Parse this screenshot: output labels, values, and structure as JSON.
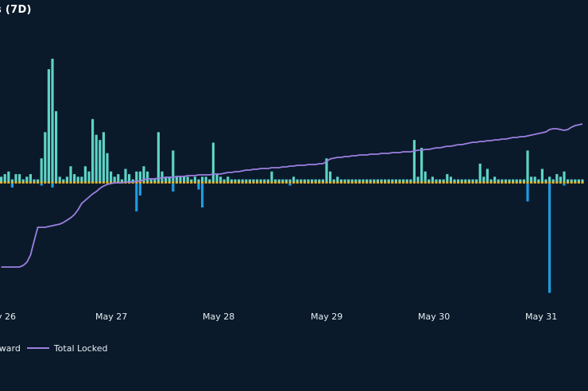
{
  "chart_data": {
    "type": "bar",
    "title": "s (7D)",
    "x_ticks": [
      "y 26",
      "May 27",
      "May 28",
      "May 29",
      "May 30",
      "May 31"
    ],
    "colors": {
      "background": "#0a1a2a",
      "stake": "#5ed3c6",
      "unstake": "#1f9be0",
      "reward": "#e8b82a",
      "total_locked": "#9d7fe0"
    },
    "series": [
      {
        "name": "Stake",
        "type": "bar",
        "values": [
          2,
          3,
          4,
          1,
          3,
          3,
          1,
          2,
          3,
          1,
          1,
          9,
          19,
          43,
          47,
          27,
          2,
          1,
          2,
          6,
          3,
          2,
          2,
          6,
          4,
          24,
          18,
          16,
          19,
          11,
          4,
          2,
          3,
          1,
          5,
          3,
          1,
          4,
          4,
          6,
          4,
          1,
          1,
          19,
          4,
          2,
          2,
          12,
          2,
          2,
          2,
          2,
          1,
          2,
          1,
          2,
          2,
          1,
          15,
          3,
          2,
          1,
          2,
          1,
          1,
          1,
          1,
          1,
          1,
          1,
          1,
          1,
          1,
          1,
          4,
          1,
          1,
          1,
          1,
          1,
          2,
          1,
          1,
          1,
          1,
          1,
          1,
          1,
          1,
          9,
          4,
          1,
          2,
          1,
          1,
          1,
          1,
          1,
          1,
          1,
          1,
          1,
          1,
          1,
          1,
          1,
          1,
          1,
          1,
          1,
          1,
          1,
          1,
          16,
          2,
          13,
          4,
          1,
          2,
          1,
          1,
          1,
          3,
          2,
          1,
          1,
          1,
          1,
          1,
          1,
          1,
          7,
          2,
          5,
          1,
          2,
          1,
          1,
          1,
          1,
          1,
          1,
          1,
          1,
          12,
          2,
          2,
          1,
          5,
          1,
          2,
          1,
          3,
          2,
          4,
          1,
          1,
          1,
          1,
          1
        ]
      },
      {
        "name": "Unstake",
        "type": "bar",
        "values": [
          0,
          0,
          0,
          -2,
          0,
          0,
          0,
          0,
          0,
          0,
          0,
          -1,
          0,
          0,
          -2,
          0,
          0,
          0,
          0,
          0,
          0,
          0,
          0,
          0,
          0,
          0,
          0,
          0,
          0,
          0,
          0,
          0,
          0,
          0,
          0,
          0,
          0,
          -14,
          -6,
          0,
          0,
          0,
          0,
          0,
          0,
          0,
          0,
          -4,
          0,
          0,
          0,
          0,
          0,
          0,
          -3,
          -12,
          0,
          0,
          0,
          0,
          0,
          0,
          0,
          0,
          0,
          0,
          0,
          0,
          0,
          0,
          0,
          0,
          0,
          0,
          0,
          0,
          0,
          0,
          0,
          -1,
          0,
          0,
          0,
          0,
          0,
          0,
          0,
          0,
          0,
          0,
          0,
          0,
          0,
          0,
          0,
          0,
          0,
          0,
          0,
          0,
          0,
          0,
          0,
          0,
          0,
          0,
          0,
          0,
          0,
          0,
          0,
          0,
          0,
          0,
          0,
          0,
          0,
          0,
          0,
          0,
          0,
          0,
          0,
          0,
          0,
          0,
          0,
          0,
          0,
          0,
          0,
          0,
          0,
          0,
          0,
          0,
          0,
          0,
          0,
          0,
          0,
          0,
          0,
          0,
          -9,
          0,
          0,
          0,
          0,
          0,
          -55,
          0,
          0,
          0,
          -1,
          0,
          0,
          0,
          0,
          0
        ]
      },
      {
        "name": "Reward",
        "type": "bar",
        "values": [
          1,
          1,
          1,
          1,
          1,
          1,
          1,
          1,
          1,
          1,
          1,
          1,
          1,
          1,
          1,
          1,
          1,
          1,
          1,
          1,
          1,
          1,
          1,
          1,
          1,
          1,
          1,
          1,
          1,
          1,
          1,
          1,
          1,
          1,
          1,
          1,
          1,
          1,
          1,
          1,
          1,
          1,
          1,
          1,
          1,
          1,
          1,
          1,
          1,
          1,
          1,
          1,
          1,
          1,
          1,
          1,
          1,
          1,
          1,
          1,
          1,
          1,
          1,
          1,
          1,
          1,
          1,
          1,
          1,
          1,
          1,
          1,
          1,
          1,
          1,
          1,
          1,
          1,
          1,
          1,
          1,
          1,
          1,
          1,
          1,
          1,
          1,
          1,
          1,
          1,
          1,
          1,
          1,
          1,
          1,
          1,
          1,
          1,
          1,
          1,
          1,
          1,
          1,
          1,
          1,
          1,
          1,
          1,
          1,
          1,
          1,
          1,
          1,
          1,
          1,
          1,
          1,
          1,
          1,
          1,
          1,
          1,
          1,
          1,
          1,
          1,
          1,
          1,
          1,
          1,
          1,
          1,
          1,
          1,
          1,
          1,
          1,
          1,
          1,
          1,
          1,
          1,
          1,
          1,
          1,
          1,
          1,
          1,
          1,
          1,
          1,
          1,
          1,
          1,
          1,
          1,
          1,
          1,
          1,
          1
        ]
      },
      {
        "name": "Total Locked",
        "type": "line",
        "values": [
          198,
          198,
          198,
          198,
          198,
          198,
          196,
          192,
          183,
          165,
          148,
          148,
          148,
          147,
          146,
          145,
          144,
          142,
          139,
          136,
          132,
          126,
          118,
          114,
          110,
          106,
          103,
          99,
          96,
          94,
          93,
          92,
          92,
          92,
          91,
          91,
          91,
          90,
          90,
          88,
          87,
          87,
          87,
          86,
          86,
          85,
          85,
          85,
          84,
          84,
          84,
          83,
          83,
          83,
          82,
          82,
          82,
          82,
          81,
          81,
          81,
          80,
          79,
          79,
          78,
          78,
          77,
          76,
          76,
          75,
          75,
          74,
          74,
          74,
          73,
          73,
          73,
          72,
          72,
          71,
          71,
          70,
          70,
          70,
          69,
          69,
          69,
          68,
          68,
          65,
          62,
          61,
          60,
          60,
          59,
          59,
          58,
          58,
          57,
          57,
          57,
          56,
          56,
          56,
          55,
          55,
          55,
          54,
          54,
          54,
          53,
          53,
          53,
          52,
          51,
          51,
          50,
          50,
          49,
          48,
          48,
          47,
          46,
          46,
          45,
          44,
          44,
          43,
          42,
          41,
          41,
          40,
          40,
          39,
          39,
          38,
          38,
          37,
          37,
          36,
          35,
          35,
          34,
          34,
          33,
          32,
          31,
          30,
          29,
          28,
          25,
          24,
          24,
          25,
          26,
          25,
          22,
          20,
          19,
          18
        ]
      }
    ],
    "legend": {
      "labels": [
        "eward",
        "Total Locked"
      ],
      "placement": "bottom-left"
    }
  }
}
